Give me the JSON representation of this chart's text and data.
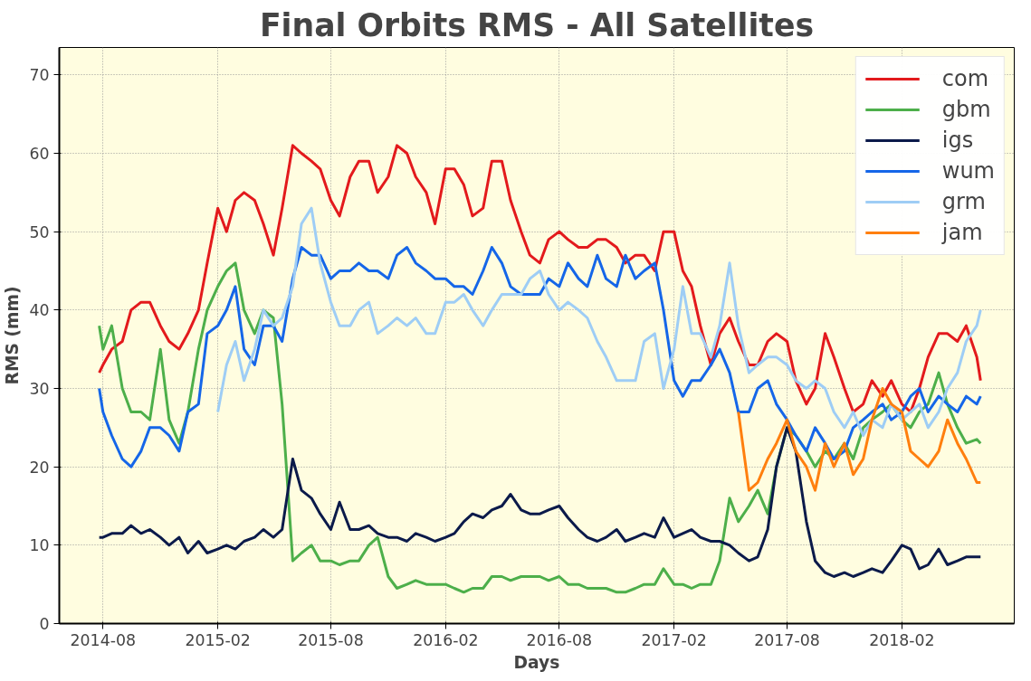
{
  "chart_data": {
    "type": "line",
    "title": "Final Orbits RMS - All Satellites",
    "xlabel": "Days",
    "ylabel": "RMS (mm)",
    "x": [
      "2014-07-26",
      "2014-08-01",
      "2014-08-15",
      "2014-09-01",
      "2014-09-15",
      "2014-10-01",
      "2014-10-15",
      "2014-11-01",
      "2014-11-15",
      "2014-12-01",
      "2014-12-15",
      "2015-01-01",
      "2015-01-15",
      "2015-02-01",
      "2015-02-15",
      "2015-03-01",
      "2015-03-15",
      "2015-04-01",
      "2015-04-15",
      "2015-05-01",
      "2015-05-15",
      "2015-06-01",
      "2015-06-15",
      "2015-07-01",
      "2015-07-15",
      "2015-08-01",
      "2015-08-15",
      "2015-09-01",
      "2015-09-15",
      "2015-10-01",
      "2015-10-15",
      "2015-11-01",
      "2015-11-15",
      "2015-12-01",
      "2015-12-15",
      "2016-01-01",
      "2016-01-15",
      "2016-02-01",
      "2016-02-15",
      "2016-03-01",
      "2016-03-15",
      "2016-04-01",
      "2016-04-15",
      "2016-05-01",
      "2016-05-15",
      "2016-06-01",
      "2016-06-15",
      "2016-07-01",
      "2016-07-15",
      "2016-08-01",
      "2016-08-15",
      "2016-09-01",
      "2016-09-15",
      "2016-10-01",
      "2016-10-15",
      "2016-11-01",
      "2016-11-15",
      "2016-12-01",
      "2016-12-15",
      "2017-01-01",
      "2017-01-15",
      "2017-02-01",
      "2017-02-15",
      "2017-03-01",
      "2017-03-15",
      "2017-04-01",
      "2017-04-15",
      "2017-05-01",
      "2017-05-15",
      "2017-06-01",
      "2017-06-15",
      "2017-07-01",
      "2017-07-15",
      "2017-08-01",
      "2017-08-15",
      "2017-09-01",
      "2017-09-15",
      "2017-10-01",
      "2017-10-15",
      "2017-11-01",
      "2017-11-15",
      "2017-12-01",
      "2017-12-15",
      "2018-01-01",
      "2018-01-15",
      "2018-02-01",
      "2018-02-15",
      "2018-03-01",
      "2018-03-15",
      "2018-04-01",
      "2018-04-15",
      "2018-05-01",
      "2018-05-15",
      "2018-06-01",
      "2018-06-07"
    ],
    "series": [
      {
        "name": "com",
        "color": "#e31a1c",
        "values": [
          32,
          33,
          35,
          36,
          40,
          41,
          41,
          38,
          36,
          35,
          37,
          40,
          46,
          53,
          50,
          54,
          55,
          54,
          51,
          47,
          53,
          61,
          60,
          59,
          58,
          54,
          52,
          57,
          59,
          59,
          55,
          57,
          61,
          60,
          57,
          55,
          51,
          58,
          58,
          56,
          52,
          53,
          59,
          59,
          54,
          50,
          47,
          46,
          49,
          50,
          49,
          48,
          48,
          49,
          49,
          48,
          46,
          47,
          47,
          45,
          50,
          50,
          45,
          43,
          38,
          33,
          37,
          39,
          36,
          33,
          33,
          36,
          37,
          36,
          31,
          28,
          30,
          37,
          34,
          30,
          27,
          28,
          31,
          29,
          31,
          28,
          27,
          30,
          34,
          37,
          37,
          36,
          38,
          34,
          31
        ]
      },
      {
        "name": "gbm",
        "color": "#4daf4a",
        "values": [
          38,
          35,
          38,
          30,
          27,
          27,
          26,
          35,
          26,
          23,
          27,
          35,
          40,
          43,
          45,
          46,
          40,
          37,
          40,
          39,
          28,
          8,
          9,
          10,
          8,
          8,
          7.5,
          8,
          8,
          10,
          11,
          6,
          4.5,
          5,
          5.5,
          5,
          5,
          5,
          4.5,
          4,
          4.5,
          4.5,
          6,
          6,
          5.5,
          6,
          6,
          6,
          5.5,
          6,
          5,
          5,
          4.5,
          4.5,
          4.5,
          4,
          4,
          4.5,
          5,
          5,
          7,
          5,
          5,
          4.5,
          5,
          5,
          8,
          16,
          13,
          15,
          17,
          14,
          20,
          25,
          24,
          22,
          20,
          22,
          21,
          23,
          21,
          25,
          26,
          27,
          28,
          26,
          25,
          27,
          28,
          32,
          28,
          25,
          23,
          23.5,
          23
        ]
      },
      {
        "name": "igs",
        "color": "#0b1a4a",
        "values": [
          11,
          11,
          11.5,
          11.5,
          12.5,
          11.5,
          12,
          11,
          10,
          11,
          9,
          10.5,
          9,
          9.5,
          10,
          9.5,
          10.5,
          11,
          12,
          11,
          12,
          21,
          17,
          16,
          14,
          12,
          15.5,
          12,
          12,
          12.5,
          11.5,
          11,
          11,
          10.5,
          11.5,
          11,
          10.5,
          11,
          11.5,
          13,
          14,
          13.5,
          14.5,
          15,
          16.5,
          14.5,
          14,
          14,
          14.5,
          15,
          13.5,
          12,
          11,
          10.5,
          11,
          12,
          10.5,
          11,
          11.5,
          11,
          13.5,
          11,
          11.5,
          12,
          11,
          10.5,
          10.5,
          10,
          9,
          8,
          8.5,
          12,
          20,
          25,
          22,
          13,
          8,
          6.5,
          6,
          6.5,
          6,
          6.5,
          7,
          6.5,
          8,
          10,
          9.5,
          7,
          7.5,
          9.5,
          7.5,
          8,
          8.5,
          8.5,
          8.5
        ]
      },
      {
        "name": "wum",
        "color": "#1566e8",
        "values": [
          30,
          27,
          24,
          21,
          20,
          22,
          25,
          25,
          24,
          22,
          27,
          28,
          37,
          38,
          40,
          43,
          35,
          33,
          38,
          38,
          36,
          44,
          48,
          47,
          47,
          44,
          45,
          45,
          46,
          45,
          45,
          44,
          47,
          48,
          46,
          45,
          44,
          44,
          43,
          43,
          42,
          45,
          48,
          46,
          43,
          42,
          42,
          42,
          44,
          43,
          46,
          44,
          43,
          47,
          44,
          43,
          47,
          44,
          45,
          46,
          40,
          31,
          29,
          31,
          31,
          33,
          35,
          32,
          27,
          27,
          30,
          31,
          28,
          26,
          24,
          22,
          25,
          23,
          21,
          22,
          25,
          26,
          27,
          28,
          26,
          27,
          29,
          30,
          27,
          29,
          28,
          27,
          29,
          28,
          29
        ]
      },
      {
        "name": "grm",
        "color": "#9ecdf5",
        "values": [
          null,
          null,
          null,
          null,
          null,
          null,
          null,
          null,
          null,
          null,
          null,
          null,
          null,
          27,
          33,
          36,
          31,
          35,
          40,
          38,
          39,
          43,
          51,
          53,
          46,
          41,
          38,
          38,
          40,
          41,
          37,
          38,
          39,
          38,
          39,
          37,
          37,
          41,
          41,
          42,
          40,
          38,
          40,
          42,
          42,
          42,
          44,
          45,
          42,
          40,
          41,
          40,
          39,
          36,
          34,
          31,
          31,
          31,
          36,
          37,
          30,
          35,
          43,
          37,
          37,
          34,
          38,
          46,
          38,
          32,
          33,
          34,
          34,
          33,
          31,
          30,
          31,
          30,
          27,
          25,
          27,
          24,
          26,
          25,
          28,
          26,
          27,
          28,
          25,
          27,
          30,
          32,
          36,
          38,
          40
        ]
      },
      {
        "name": "jam",
        "color": "#ff7f0e",
        "values": [
          null,
          null,
          null,
          null,
          null,
          null,
          null,
          null,
          null,
          null,
          null,
          null,
          null,
          null,
          null,
          null,
          null,
          null,
          null,
          null,
          null,
          null,
          null,
          null,
          null,
          null,
          null,
          null,
          null,
          null,
          null,
          null,
          null,
          null,
          null,
          null,
          null,
          null,
          null,
          null,
          null,
          null,
          null,
          null,
          null,
          null,
          null,
          null,
          null,
          null,
          null,
          null,
          null,
          null,
          null,
          null,
          null,
          null,
          null,
          null,
          null,
          null,
          null,
          null,
          null,
          null,
          null,
          null,
          27,
          17,
          18,
          21,
          23,
          26,
          22,
          20,
          17,
          23,
          20,
          23,
          19,
          21,
          26,
          30,
          28,
          27,
          22,
          21,
          20,
          22,
          26,
          23,
          21,
          18,
          18
        ]
      }
    ],
    "xlim": [
      "2014-05-23",
      "2018-07-31"
    ],
    "xticks": [
      "2014-08",
      "2015-02",
      "2015-08",
      "2016-02",
      "2016-08",
      "2017-02",
      "2017-08",
      "2018-02"
    ],
    "ylim": [
      0,
      73.5
    ],
    "yticks": [
      0,
      10,
      20,
      30,
      40,
      50,
      60,
      70
    ],
    "grid": true,
    "legend": "top right",
    "marker": "none",
    "line_style": "solid"
  }
}
